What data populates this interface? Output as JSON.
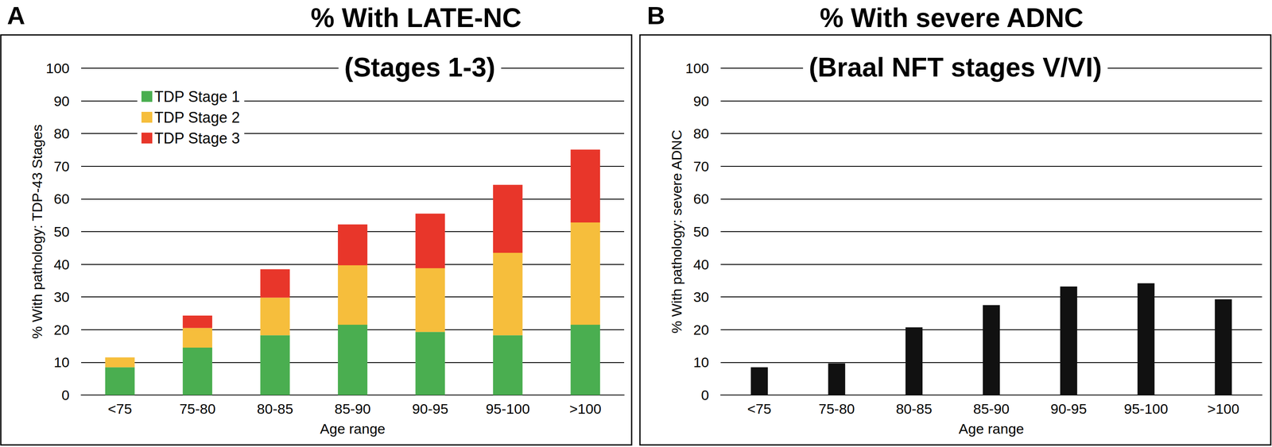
{
  "chart_data": [
    {
      "type": "bar",
      "panel": "A",
      "title": "% With LATE-NC",
      "subtitle": "(Stages 1-3)",
      "x_label": "Age range",
      "y_label": "% With pathology: TDP-43 Stages",
      "categories": [
        "<75",
        "75-80",
        "80-85",
        "85-90",
        "90-95",
        "95-100",
        ">100"
      ],
      "series": [
        {
          "name": "TDP Stage 1",
          "color": "#4aae50",
          "values": [
            8.5,
            14.5,
            18.3,
            21.5,
            19.3,
            18.3,
            21.5
          ]
        },
        {
          "name": "TDP Stage 2",
          "color": "#f6be3c",
          "values": [
            3.0,
            6.0,
            11.5,
            18.2,
            19.5,
            25.2,
            31.3
          ]
        },
        {
          "name": "TDP Stage 3",
          "color": "#e8362a",
          "values": [
            0,
            3.8,
            8.7,
            12.5,
            16.7,
            20.8,
            22.3
          ]
        }
      ],
      "stacked": true,
      "legend": "upper left",
      "ylim": [
        0,
        100
      ],
      "yticks": [
        0,
        10,
        20,
        30,
        40,
        50,
        60,
        70,
        80,
        90,
        100
      ],
      "grid": true
    },
    {
      "type": "bar",
      "panel": "B",
      "title": "% With severe ADNC",
      "subtitle": "(Braal NFT stages V/VI)",
      "x_label": "Age range",
      "y_label": "% With pathology: severe ADNC",
      "categories": [
        "<75",
        "75-80",
        "80-85",
        "85-90",
        "90-95",
        "95-100",
        ">100"
      ],
      "values": [
        8.5,
        9.7,
        20.7,
        27.5,
        33.2,
        34.2,
        29.3
      ],
      "color": "#111111",
      "ylim": [
        0,
        100
      ],
      "yticks": [
        0,
        10,
        20,
        30,
        40,
        50,
        60,
        70,
        80,
        90,
        100
      ],
      "grid": true
    }
  ]
}
